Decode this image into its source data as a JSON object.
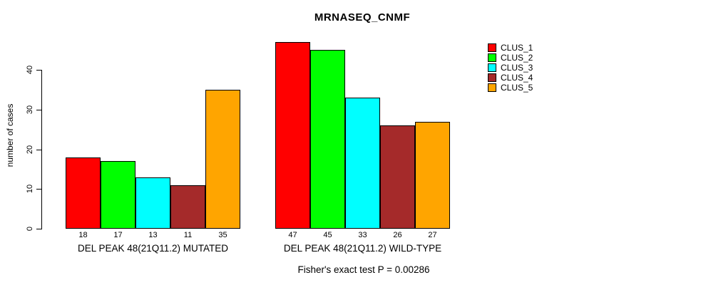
{
  "figure": {
    "title": "MRNASEQ_CNMF",
    "ylabel": "number of cases",
    "footer": "Fisher's exact test P = 0.00286"
  },
  "chart_data": {
    "type": "bar",
    "title": "MRNASEQ_CNMF",
    "xlabel": "",
    "ylabel": "number of cases",
    "ylim": [
      0,
      47
    ],
    "yticks": [
      0,
      10,
      20,
      30,
      40
    ],
    "grid": false,
    "legend_position": "right",
    "categories": [
      "DEL PEAK 48(21Q11.2) MUTATED",
      "DEL PEAK 48(21Q11.2) WILD-TYPE"
    ],
    "series": [
      {
        "name": "CLUS_1",
        "color": "#FF0000",
        "values": [
          18,
          47
        ]
      },
      {
        "name": "CLUS_2",
        "color": "#00FF00",
        "values": [
          17,
          45
        ]
      },
      {
        "name": "CLUS_3",
        "color": "#00FFFF",
        "values": [
          13,
          33
        ]
      },
      {
        "name": "CLUS_4",
        "color": "#A52A2A",
        "values": [
          11,
          26
        ]
      },
      {
        "name": "CLUS_5",
        "color": "#FFA500",
        "values": [
          35,
          27
        ]
      }
    ],
    "bar_value_labels": [
      [
        18,
        17,
        13,
        11,
        35
      ],
      [
        47,
        45,
        33,
        26,
        27
      ]
    ],
    "annotation": "Fisher's exact test P = 0.00286"
  }
}
